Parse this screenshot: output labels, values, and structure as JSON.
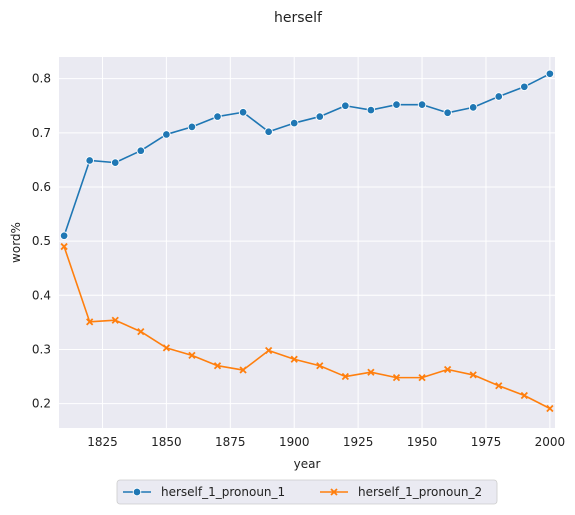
{
  "chart_data": {
    "type": "line",
    "title": "herself",
    "xlabel": "year",
    "ylabel": "word%",
    "xlim": [
      1808,
      2002
    ],
    "ylim": [
      0.155,
      0.84
    ],
    "xticks": [
      1825,
      1850,
      1875,
      1900,
      1925,
      1950,
      1975,
      2000
    ],
    "yticks": [
      0.2,
      0.3,
      0.4,
      0.5,
      0.6,
      0.7,
      0.8
    ],
    "xtick_labels": [
      "1825",
      "1850",
      "1875",
      "1900",
      "1925",
      "1950",
      "1975",
      "2000"
    ],
    "ytick_labels": [
      "0.2",
      "0.3",
      "0.4",
      "0.5",
      "0.6",
      "0.7",
      "0.8"
    ],
    "grid": true,
    "background": "#eaeaf2",
    "legend_position": "bottom-center",
    "x": [
      1810,
      1820,
      1830,
      1840,
      1850,
      1860,
      1870,
      1880,
      1890,
      1900,
      1910,
      1920,
      1930,
      1940,
      1950,
      1960,
      1970,
      1980,
      1990,
      2000
    ],
    "series": [
      {
        "name": "herself_1_pronoun_1",
        "color": "#1f77b4",
        "marker": "circle",
        "values": [
          0.51,
          0.649,
          0.645,
          0.667,
          0.697,
          0.711,
          0.73,
          0.738,
          0.702,
          0.718,
          0.73,
          0.75,
          0.742,
          0.752,
          0.752,
          0.737,
          0.747,
          0.767,
          0.785,
          0.809
        ]
      },
      {
        "name": "herself_1_pronoun_2",
        "color": "#ff7f0e",
        "marker": "x",
        "values": [
          0.49,
          0.351,
          0.354,
          0.333,
          0.303,
          0.289,
          0.27,
          0.262,
          0.298,
          0.282,
          0.27,
          0.25,
          0.258,
          0.248,
          0.248,
          0.263,
          0.253,
          0.233,
          0.215,
          0.191
        ]
      }
    ]
  }
}
